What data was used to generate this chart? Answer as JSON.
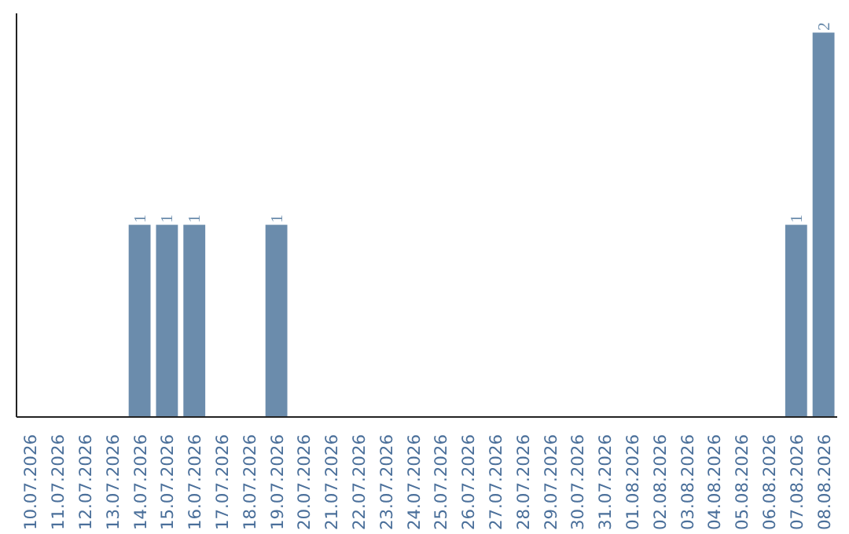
{
  "chart_data": {
    "type": "bar",
    "categories": [
      "10.07.2026",
      "11.07.2026",
      "12.07.2026",
      "13.07.2026",
      "14.07.2026",
      "15.07.2026",
      "16.07.2026",
      "17.07.2026",
      "18.07.2026",
      "19.07.2026",
      "20.07.2026",
      "21.07.2026",
      "22.07.2026",
      "23.07.2026",
      "24.07.2026",
      "25.07.2026",
      "26.07.2026",
      "27.07.2026",
      "28.07.2026",
      "29.07.2026",
      "30.07.2026",
      "31.07.2026",
      "01.08.2026",
      "02.08.2026",
      "03.08.2026",
      "04.08.2026",
      "05.08.2026",
      "06.08.2026",
      "07.08.2026",
      "08.08.2026"
    ],
    "values": [
      0,
      0,
      0,
      0,
      1,
      1,
      1,
      0,
      0,
      1,
      0,
      0,
      0,
      0,
      0,
      0,
      0,
      0,
      0,
      0,
      0,
      0,
      0,
      0,
      0,
      0,
      0,
      0,
      1,
      2
    ],
    "value_labels": [
      null,
      null,
      null,
      null,
      "1",
      "1",
      "1",
      null,
      null,
      "1",
      null,
      null,
      null,
      null,
      null,
      null,
      null,
      null,
      null,
      null,
      null,
      null,
      null,
      null,
      null,
      null,
      null,
      null,
      "1",
      "2"
    ],
    "color": "#6b8cac",
    "tick_labels": "x"
  }
}
